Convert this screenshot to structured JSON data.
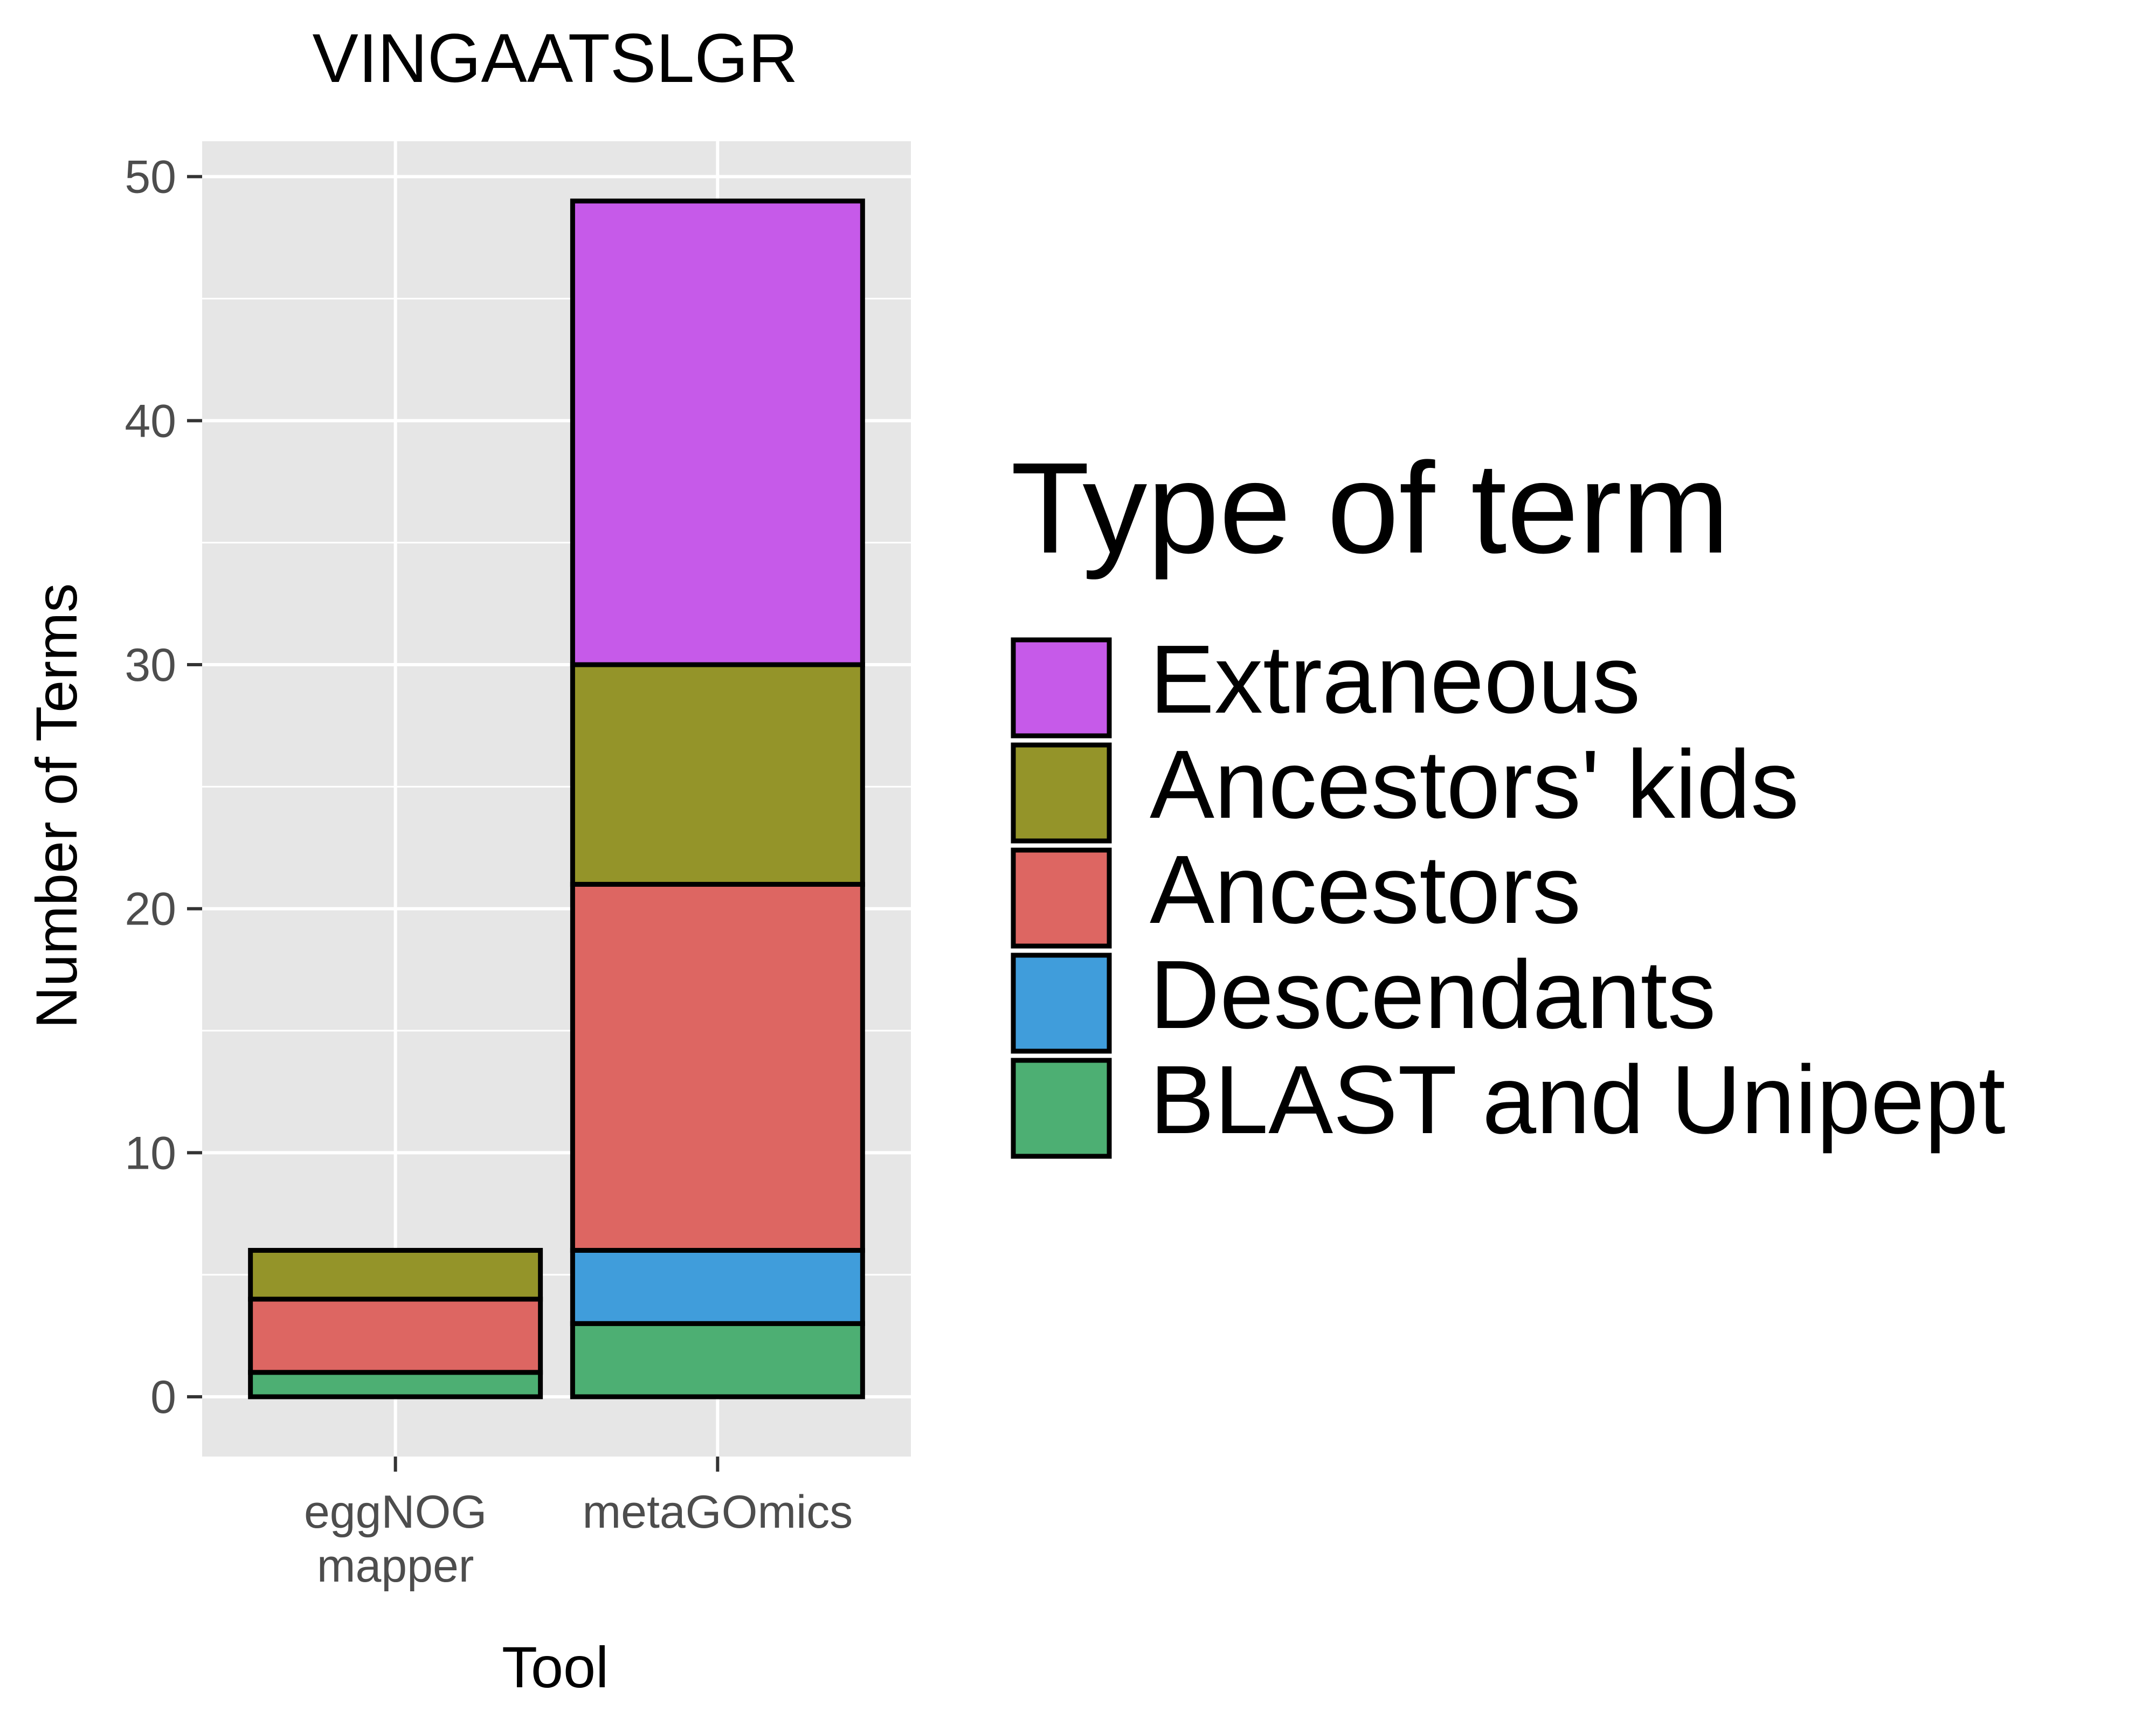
{
  "chart_data": {
    "type": "bar",
    "stacked": true,
    "title": "VINGAATSLGR",
    "xlabel": "Tool",
    "ylabel": "Number of Terms",
    "categories": [
      [
        "eggNOG",
        "mapper"
      ],
      [
        "metaGOmics"
      ]
    ],
    "ylim": [
      -2.45,
      51.45
    ],
    "yticks": [
      0,
      10,
      20,
      30,
      40,
      50
    ],
    "grid": true,
    "legend": {
      "title": "Type of term",
      "position": "right",
      "entries": [
        "Extraneous",
        "Ancestors' kids",
        "Ancestors",
        "Descendants",
        "BLAST and Unipept"
      ]
    },
    "series": [
      {
        "name": "BLAST and Unipept",
        "color": "#4daf73",
        "values": [
          1,
          3
        ]
      },
      {
        "name": "Descendants",
        "color": "#409ddb",
        "values": [
          0,
          3
        ]
      },
      {
        "name": "Ancestors",
        "color": "#dd6662",
        "values": [
          3,
          15
        ]
      },
      {
        "name": "Ancestors' kids",
        "color": "#949429",
        "values": [
          2,
          9
        ]
      },
      {
        "name": "Extraneous",
        "color": "#c65ae9",
        "values": [
          0,
          19
        ]
      }
    ],
    "colors": {
      "panel_background": "#e6e6e6",
      "grid": "#ffffff",
      "bar_outline": "#000000",
      "tick_text": "#4d4d4d"
    }
  }
}
